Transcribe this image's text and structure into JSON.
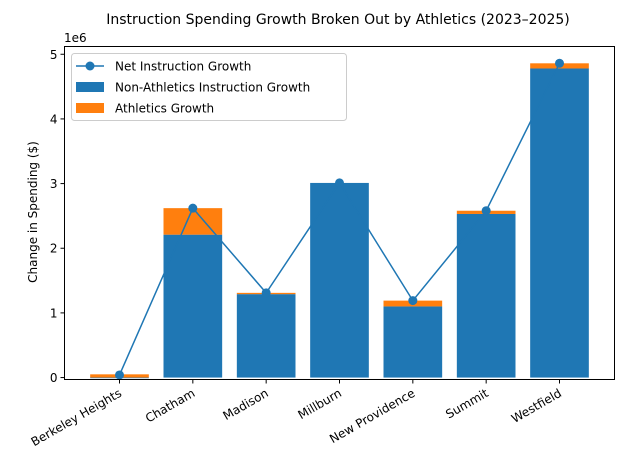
{
  "chart_data": {
    "type": "bar",
    "title": "Instruction Spending Growth Broken Out by Athletics (2023–2025)",
    "xlabel": "",
    "ylabel": "Change in Spending ($)",
    "y_offset_label": "1e6",
    "ylim": [
      -0.03,
      5.12
    ],
    "yticks": [
      0,
      1,
      2,
      3,
      4,
      5
    ],
    "ytick_labels": [
      "0",
      "1",
      "2",
      "3",
      "4",
      "5"
    ],
    "categories": [
      "Berkeley Heights",
      "Chatham",
      "Madison",
      "Millburn",
      "New Providence",
      "Summit",
      "Westfield"
    ],
    "stacked": true,
    "series": [
      {
        "name": "Non-Athletics Instruction Growth",
        "kind": "bar",
        "color": "#1f77b4",
        "values": [
          -0.01,
          2.21,
          1.29,
          3.01,
          1.1,
          2.53,
          4.78
        ]
      },
      {
        "name": "Athletics Growth",
        "kind": "bar",
        "color": "#ff7f0e",
        "values": [
          0.05,
          0.41,
          0.02,
          0.0,
          0.09,
          0.05,
          0.08
        ]
      },
      {
        "name": "Net Instruction Growth",
        "kind": "line",
        "color": "#1f77b4",
        "marker": "circle",
        "values": [
          0.04,
          2.62,
          1.31,
          3.01,
          1.19,
          2.58,
          4.86
        ]
      }
    ],
    "value_unit": "millions of dollars",
    "legend": {
      "placement": "top-left",
      "entries": [
        "Net Instruction Growth",
        "Non-Athletics Instruction Growth",
        "Athletics Growth"
      ]
    },
    "grid": false
  }
}
